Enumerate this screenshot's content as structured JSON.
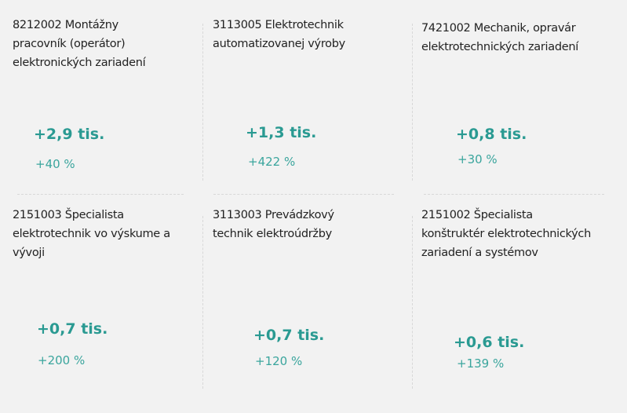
{
  "cards": [
    {
      "title_lines": [
        "8212002  Montážny",
        "pracovník (operátor)",
        "elektronických zariadení"
      ],
      "value": "+2,9 tis.",
      "percent": "+40 %"
    },
    {
      "title_lines": [
        "3113005  Elektrotechnik",
        "automatizovanej výroby"
      ],
      "value": "+1,3 tis.",
      "percent": "+422 %"
    },
    {
      "title_lines": [
        "7421002  Mechanik, opravár",
        "elektrotechnických zariadení"
      ],
      "value": "+0,8 tis.",
      "percent": "+30 %"
    },
    {
      "title_lines": [
        "2151003  Špecialista",
        "elektrotechnik vo výskume a",
        "vývoji"
      ],
      "value": "+0,7 tis.",
      "percent": "+200 %"
    },
    {
      "title_lines": [
        "3113003  Prevádzkový",
        "technik elektroúdržby"
      ],
      "value": "+0,7 tis.",
      "percent": "+120 %"
    },
    {
      "title_lines": [
        "2151002  Špecialista",
        "konštruktér elektrotechnických",
        "zariadení a systémov"
      ],
      "value": "+0,6 tis.",
      "percent": "+139 %"
    }
  ],
  "colors": {
    "accent": "#2a9a92",
    "background": "#f2f2f2"
  }
}
